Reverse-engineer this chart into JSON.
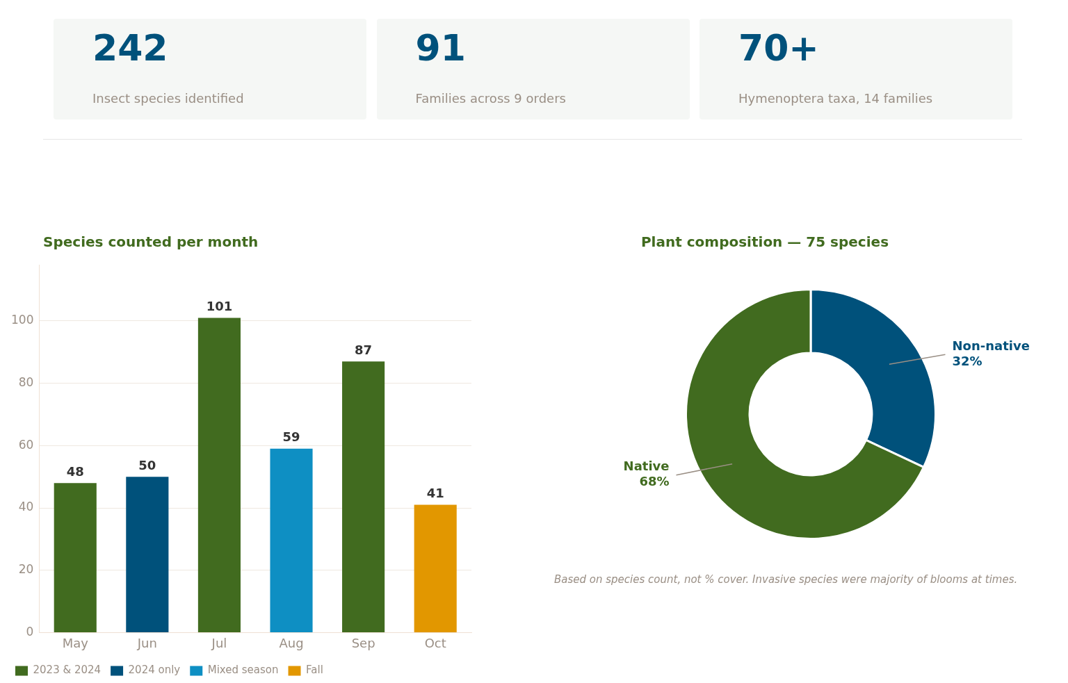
{
  "chart_data": [
    {
      "type": "other",
      "annotations": [
        "242",
        "Insect species identified",
        "91",
        "Families across 9 orders",
        "70+",
        "Hymenoptera taxa, 14 families"
      ]
    },
    {
      "type": "bar",
      "title": "Species counted per month",
      "categories": [
        "May",
        "Jun",
        "Jul",
        "Aug",
        "Sep",
        "Oct"
      ],
      "series": [
        {
          "name": "2023 & 2024",
          "color": "#416b1f",
          "values": [
            48,
            null,
            101,
            null,
            87,
            null
          ]
        },
        {
          "name": "2024 only",
          "color": "#00517b",
          "values": [
            null,
            50,
            null,
            null,
            null,
            null
          ]
        },
        {
          "name": "Mixed season",
          "color": "#0e8fc3",
          "values": [
            null,
            null,
            null,
            59,
            null,
            null
          ]
        },
        {
          "name": "Fall",
          "color": "#e29700",
          "values": [
            null,
            null,
            null,
            null,
            null,
            41
          ]
        }
      ],
      "ylim": [
        0,
        118
      ],
      "yticks": [
        0,
        20,
        40,
        60,
        80,
        100
      ],
      "grid": "y",
      "legend": "bottom left",
      "data_labels": true
    },
    {
      "type": "donut",
      "title": "Plant composition — 75 species",
      "categories": [
        "Non-native",
        "Native"
      ],
      "values": [
        32,
        68
      ],
      "colors": [
        "#00517b",
        "#416b1f"
      ],
      "value_labels": [
        "32%",
        "68%"
      ],
      "annotations": [
        "Based on species count, not % cover. Invasive species were majority of blooms at times."
      ]
    }
  ]
}
